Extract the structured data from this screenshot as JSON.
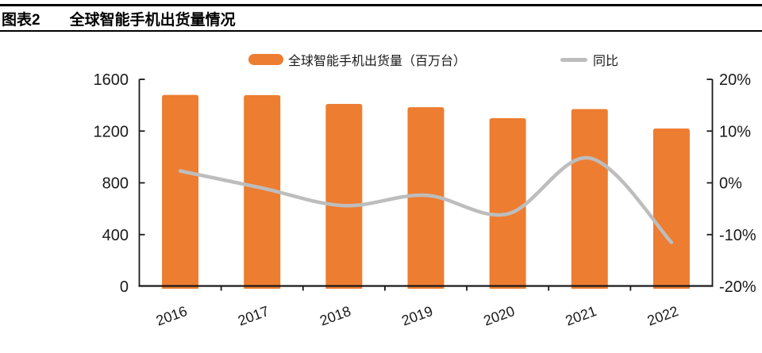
{
  "header": {
    "tag": "图表2",
    "title": "全球智能手机出货量情况"
  },
  "legend": {
    "items": [
      {
        "label": "全球智能手机出货量（百万台）",
        "marker": "bar",
        "color": "#ED7D31"
      },
      {
        "label": "同比",
        "marker": "line",
        "color": "#BDBDBD"
      }
    ]
  },
  "colors": {
    "bar": "#ED7D31",
    "line": "#BDBDBD",
    "axis": "#1a1a1a",
    "title_rule": "#000000"
  },
  "chart_data": {
    "type": "bar",
    "subtype": "bar+line combo with dual y-axes",
    "title": "全球智能手机出货量情况",
    "categories": [
      "2016",
      "2017",
      "2018",
      "2019",
      "2020",
      "2021",
      "2022"
    ],
    "series": [
      {
        "name": "全球智能手机出货量（百万台）",
        "type": "bar",
        "axis": "left",
        "unit": "百万台",
        "color": "#ED7D31",
        "values": [
          1480,
          1478,
          1410,
          1385,
          1300,
          1370,
          1220
        ]
      },
      {
        "name": "同比",
        "type": "line",
        "axis": "right",
        "unit": "%",
        "color": "#BDBDBD",
        "values": [
          2.3,
          -1.0,
          -4.4,
          -2.4,
          -6.0,
          4.8,
          -11.5
        ]
      }
    ],
    "left_axis": {
      "min": 0,
      "max": 1600,
      "step": 400,
      "tick_labels": [
        "1600",
        "1200",
        "800",
        "400",
        "0"
      ]
    },
    "right_axis": {
      "min": -20,
      "max": 20,
      "step": 10,
      "tick_labels": [
        "20%",
        "10%",
        "0%",
        "-10%",
        "-20%"
      ]
    },
    "grid": false,
    "legend_position": "top"
  }
}
